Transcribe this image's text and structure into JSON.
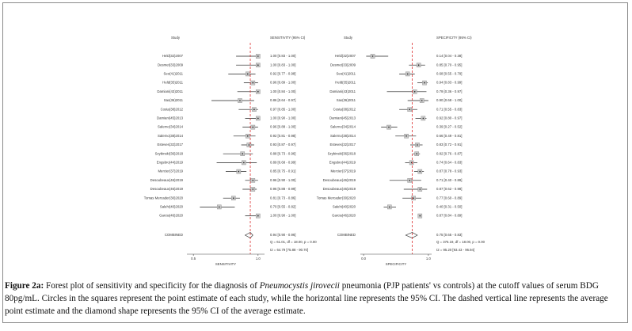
{
  "chart_data": [
    {
      "type": "forest",
      "study_header": "Study",
      "estimate_header": "SENSITIVITY (95% CI)",
      "xlabel": "SENSITIVITY",
      "categories": [
        "Held(32)2007",
        "Desmet(33)2009",
        "Seo(41)2011",
        "Held(35)2011",
        "Damiani(43)2011",
        "Sax(36)2011",
        "Costa(38)2012",
        "Damiani(45)2013",
        "Salerno(34)2014",
        "Salerno(38)2014",
        "Esteves(32)2017",
        "Szybinski(36)2018",
        "Engsbro(44)2019",
        "Mercier(37)2019",
        "Desoubeaux(46)2019",
        "Desoubeaux(46)2019",
        "Tomas Mercader(30)2020",
        "Salehi(40)2020",
        "Garcia(46)2020"
      ],
      "values": [
        1.0,
        1.0,
        0.92,
        0.96,
        1.0,
        0.86,
        0.97,
        1.0,
        0.96,
        0.92,
        0.93,
        0.88,
        0.89,
        0.85,
        0.96,
        0.96,
        0.81,
        0.7,
        1.0
      ],
      "lower": [
        0.83,
        0.83,
        0.77,
        0.89,
        0.84,
        0.64,
        0.85,
        0.9,
        0.88,
        0.81,
        0.87,
        0.73,
        0.68,
        0.75,
        0.9,
        0.88,
        0.73,
        0.55,
        0.9
      ],
      "upper": [
        1.0,
        1.0,
        0.98,
        1.0,
        1.0,
        0.97,
        1.0,
        1.0,
        1.0,
        0.98,
        0.97,
        0.96,
        0.99,
        0.91,
        1.0,
        0.99,
        0.86,
        0.82,
        1.0
      ],
      "value_labels": [
        "1.00 [0.83 - 1.00]",
        "1.00 [0.83 - 1.00]",
        "0.92 [0.77 - 0.98]",
        "0.96 [0.89 - 1.00]",
        "1.00 [0.84 - 1.00]",
        "0.86 [0.64 - 0.97]",
        "0.97 [0.85 - 1.00]",
        "1.00 [0.90 - 1.00]",
        "0.96 [0.88 - 1.00]",
        "0.92 [0.81 - 0.98]",
        "0.93 [0.87 - 0.97]",
        "0.88 [0.73 - 0.96]",
        "0.89 [0.68 - 0.99]",
        "0.85 [0.75 - 0.91]",
        "0.96 [0.90 - 1.00]",
        "0.96 [0.88 - 0.99]",
        "0.81 [0.73 - 0.86]",
        "0.70 [0.55 - 0.82]",
        "1.00 [0.90 - 1.00]"
      ],
      "combined_label": "COMBINED",
      "combined": 0.94,
      "combined_lower": 0.9,
      "combined_upper": 0.96,
      "combined_value_label": "0.94 [0.90 - 0.96]",
      "stats": [
        "Q = 61.01, df = 18.00, p = 0.00",
        "I2 = 64.79 [75.88 - 90.70]"
      ],
      "xlim": [
        0.45,
        1.05
      ],
      "xticks": [
        0.5,
        {
          "value": 1,
          "label": "1.0"
        }
      ]
    },
    {
      "type": "forest",
      "study_header": "Study",
      "estimate_header": "SPECIFICITY (95% CI)",
      "xlabel": "SPECIFICITY",
      "categories": [
        "Held(32)2007",
        "Desmet(33)2009",
        "Seo(41)2011",
        "Held(35)2011",
        "Damiani(43)2011",
        "Sax(36)2011",
        "Costa(38)2012",
        "Damiani(45)2013",
        "Salerno(34)2014",
        "Salerno(38)2014",
        "Esteves(32)2017",
        "Szybinski(36)2018",
        "Engsbro(44)2019",
        "Mercier(37)2019",
        "Desoubeaux(46)2019",
        "Desoubeaux(46)2019",
        "Tomas Mercader(30)2020",
        "Salehi(40)2020",
        "Garcia(46)2020"
      ],
      "values": [
        0.14,
        0.85,
        0.68,
        0.94,
        0.79,
        0.9,
        0.71,
        0.92,
        0.39,
        0.66,
        0.83,
        0.82,
        0.74,
        0.87,
        0.71,
        0.87,
        0.77,
        0.4,
        0.87
      ],
      "lower": [
        0.04,
        0.7,
        0.55,
        0.83,
        0.36,
        0.68,
        0.55,
        0.8,
        0.27,
        0.49,
        0.72,
        0.76,
        0.64,
        0.78,
        0.4,
        0.62,
        0.6,
        0.31,
        0.84
      ],
      "upper": [
        0.38,
        0.95,
        0.79,
        0.99,
        0.97,
        1.0,
        0.83,
        0.97,
        0.52,
        0.81,
        0.91,
        0.87,
        0.83,
        0.93,
        0.89,
        0.98,
        0.89,
        0.5,
        0.89
      ],
      "value_labels": [
        "0.14 [0.04 - 0.38]",
        "0.85 [0.70 - 0.95]",
        "0.68 [0.55 - 0.79]",
        "0.94 [0.83 - 0.99]",
        "0.79 [0.36 - 0.97]",
        "0.90 [0.68 - 1.00]",
        "0.71 [0.55 - 0.83]",
        "0.92 [0.80 - 0.97]",
        "0.39 [0.27 - 0.52]",
        "0.66 [0.49 - 0.81]",
        "0.83 [0.72 - 0.91]",
        "0.82 [0.76 - 0.87]",
        "0.74 [0.64 - 0.83]",
        "0.87 [0.78 - 0.93]",
        "0.71 [0.40 - 0.89]",
        "0.87 [0.62 - 0.98]",
        "0.77 [0.60 - 0.89]",
        "0.40 [0.31 - 0.50]",
        "0.87 [0.84 - 0.89]"
      ],
      "combined_label": "COMBINED",
      "combined": 0.75,
      "combined_lower": 0.65,
      "combined_upper": 0.83,
      "combined_value_label": "0.75 [0.65 - 0.83]",
      "stats": [
        "Q = 375.19, df = 18.00, p = 0.00",
        "I2 = 95.20 [93.43 - 96.94]"
      ],
      "xlim": [
        -0.05,
        1.05
      ],
      "xticks": [
        {
          "value": 0,
          "label": "0.0"
        },
        {
          "value": 1,
          "label": "1.0"
        }
      ]
    }
  ],
  "caption": {
    "label": "Figure 2a:",
    "text1": "Forest plot of sensitivity and specificity for the diagnosis of",
    "italic": "Pneumocystis jirovecii",
    "text2": "pneumonia (PJP patients' vs controls) at the cutoff values of serum BDG 80pg/mL. Circles in the squares represent the point estimate of each study, while the horizontal line represents the 95% CI. The dashed vertical line represents the average point estimate and the diamond shape represents the 95% CI of the average estimate."
  }
}
